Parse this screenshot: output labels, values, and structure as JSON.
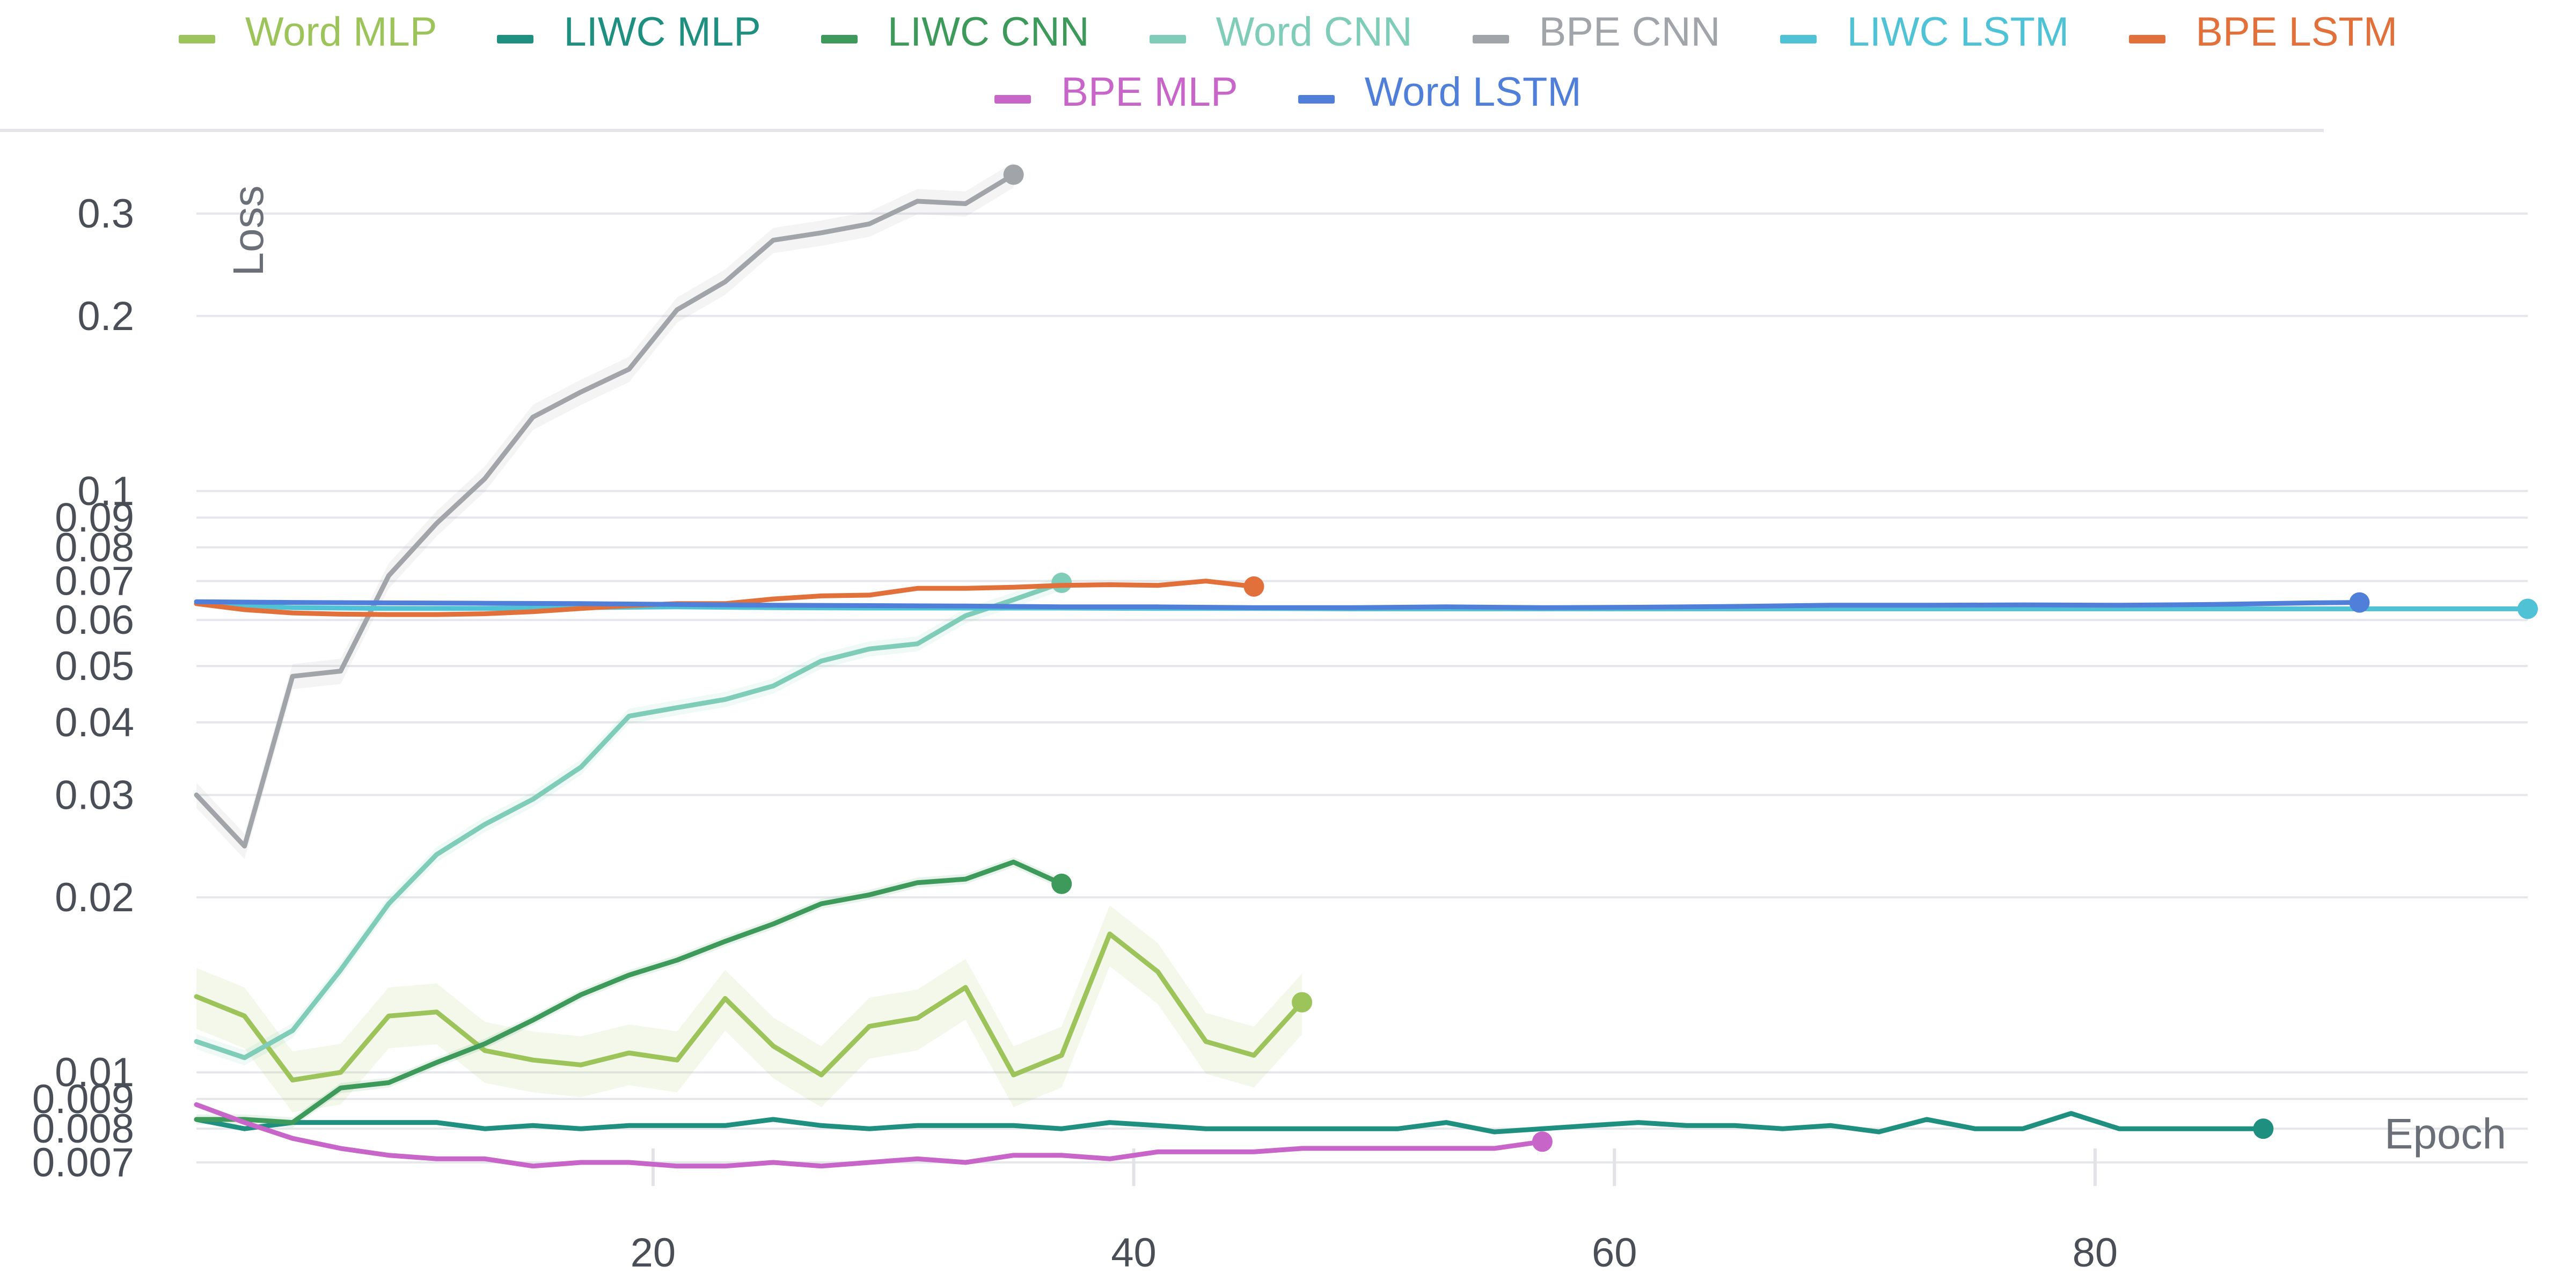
{
  "chart_data": {
    "type": "line",
    "xlabel": "Epoch",
    "ylabel": "Loss",
    "xlim": [
      1,
      98
    ],
    "ylim": [
      0.0064,
      0.36
    ],
    "yscale": "log",
    "grid": true,
    "legend_placement": "top",
    "x_ticks": [
      20,
      40,
      60,
      80
    ],
    "x_tick_labels": [
      "20",
      "40",
      "60",
      "80"
    ],
    "y_ticks": [
      0.007,
      0.008,
      0.009,
      0.01,
      0.02,
      0.03,
      0.04,
      0.05,
      0.06,
      0.07,
      0.08,
      0.09,
      0.1,
      0.2,
      0.3
    ],
    "y_tick_labels": [
      "0.007",
      "0.008",
      "0.009",
      "0.01",
      "0.02",
      "0.03",
      "0.04",
      "0.05",
      "0.06",
      "0.07",
      "0.08",
      "0.09",
      "0.1",
      "0.2",
      "0.3"
    ],
    "series": [
      {
        "name": "Word MLP",
        "color": "#9cc45a",
        "x": [
          1,
          3,
          5,
          7,
          9,
          11,
          13,
          15,
          17,
          19,
          21,
          23,
          25,
          27,
          29,
          31,
          33,
          35,
          37,
          39,
          41,
          43,
          45,
          47
        ],
        "y": [
          0.0135,
          0.0125,
          0.0097,
          0.01,
          0.0125,
          0.0127,
          0.0109,
          0.0105,
          0.0103,
          0.0108,
          0.0105,
          0.0134,
          0.0111,
          0.0099,
          0.012,
          0.0124,
          0.014,
          0.0099,
          0.0107,
          0.0173,
          0.0149,
          0.0113,
          0.0107,
          0.0132
        ]
      },
      {
        "name": "LIWC MLP",
        "color": "#1f8f80",
        "x": [
          1,
          3,
          5,
          7,
          9,
          11,
          13,
          15,
          17,
          19,
          21,
          23,
          25,
          27,
          29,
          31,
          33,
          35,
          37,
          39,
          41,
          43,
          45,
          47,
          49,
          51,
          53,
          55,
          57,
          59,
          61,
          63,
          65,
          67,
          69,
          71,
          73,
          75,
          77,
          79,
          81,
          83,
          85,
          87
        ],
        "y": [
          0.0083,
          0.008,
          0.0082,
          0.0082,
          0.0082,
          0.0082,
          0.008,
          0.0081,
          0.008,
          0.0081,
          0.0081,
          0.0081,
          0.0083,
          0.0081,
          0.008,
          0.0081,
          0.0081,
          0.0081,
          0.008,
          0.0082,
          0.0081,
          0.008,
          0.008,
          0.008,
          0.008,
          0.008,
          0.0082,
          0.0079,
          0.008,
          0.0081,
          0.0082,
          0.0081,
          0.0081,
          0.008,
          0.0081,
          0.0079,
          0.0083,
          0.008,
          0.008,
          0.0085,
          0.008,
          0.008,
          0.008,
          0.008
        ]
      },
      {
        "name": "LIWC CNN",
        "color": "#3e9a5a",
        "x": [
          1,
          3,
          5,
          7,
          9,
          11,
          13,
          15,
          17,
          19,
          21,
          23,
          25,
          27,
          29,
          31,
          33,
          35,
          37
        ],
        "y": [
          0.0083,
          0.0083,
          0.0082,
          0.0094,
          0.0096,
          0.0104,
          0.0112,
          0.0123,
          0.0136,
          0.0147,
          0.0156,
          0.0168,
          0.018,
          0.0195,
          0.0202,
          0.0212,
          0.0215,
          0.023,
          0.0211
        ]
      },
      {
        "name": "Word CNN",
        "color": "#7fcdb8",
        "x": [
          1,
          3,
          5,
          7,
          9,
          11,
          13,
          15,
          17,
          19,
          21,
          23,
          25,
          27,
          29,
          31,
          33,
          35,
          37
        ],
        "y": [
          0.0113,
          0.0106,
          0.0118,
          0.015,
          0.0195,
          0.0237,
          0.0267,
          0.0295,
          0.0335,
          0.041,
          0.0424,
          0.0438,
          0.0462,
          0.051,
          0.0535,
          0.0546,
          0.061,
          0.065,
          0.0695
        ]
      },
      {
        "name": "BPE CNN",
        "color": "#a1a5aa",
        "x": [
          1,
          3,
          5,
          7,
          9,
          11,
          13,
          15,
          17,
          19,
          21,
          23,
          25,
          27,
          29,
          31,
          33,
          35
        ],
        "y": [
          0.03,
          0.0245,
          0.048,
          0.049,
          0.0715,
          0.088,
          0.105,
          0.134,
          0.148,
          0.162,
          0.205,
          0.229,
          0.27,
          0.278,
          0.288,
          0.315,
          0.312,
          0.35
        ]
      },
      {
        "name": "LIWC LSTM",
        "color": "#4fc3d5",
        "x": [
          1,
          5,
          9,
          13,
          17,
          21,
          25,
          29,
          33,
          37,
          41,
          45,
          49,
          53,
          57,
          61,
          65,
          69,
          73,
          77,
          81,
          85,
          89,
          93,
          98
        ],
        "y": [
          0.064,
          0.063,
          0.0628,
          0.0628,
          0.063,
          0.0632,
          0.063,
          0.0629,
          0.0629,
          0.0629,
          0.0628,
          0.0628,
          0.0627,
          0.0627,
          0.0627,
          0.0627,
          0.0627,
          0.0627,
          0.0627,
          0.0627,
          0.0627,
          0.0627,
          0.0627,
          0.0627,
          0.0627
        ]
      },
      {
        "name": "BPE LSTM",
        "color": "#e2703a",
        "x": [
          1,
          3,
          5,
          7,
          9,
          11,
          13,
          15,
          17,
          19,
          21,
          23,
          25,
          27,
          29,
          31,
          33,
          35,
          37,
          39,
          41,
          43,
          45
        ],
        "y": [
          0.064,
          0.0625,
          0.0617,
          0.0614,
          0.0613,
          0.0613,
          0.0615,
          0.062,
          0.0628,
          0.0635,
          0.064,
          0.064,
          0.0652,
          0.066,
          0.0662,
          0.068,
          0.068,
          0.0683,
          0.0688,
          0.069,
          0.0688,
          0.07,
          0.0685
        ]
      },
      {
        "name": "BPE MLP",
        "color": "#c865c8",
        "x": [
          1,
          3,
          5,
          7,
          9,
          11,
          13,
          15,
          17,
          19,
          21,
          23,
          25,
          27,
          29,
          31,
          33,
          35,
          37,
          39,
          41,
          43,
          45,
          47,
          49,
          51,
          53,
          55,
          57
        ],
        "y": [
          0.0088,
          0.0082,
          0.0077,
          0.0074,
          0.0072,
          0.0071,
          0.0071,
          0.0069,
          0.007,
          0.007,
          0.0069,
          0.0069,
          0.007,
          0.0069,
          0.007,
          0.0071,
          0.007,
          0.0072,
          0.0072,
          0.0071,
          0.0073,
          0.0073,
          0.0073,
          0.0074,
          0.0074,
          0.0074,
          0.0074,
          0.0074,
          0.0076
        ]
      },
      {
        "name": "Word LSTM",
        "color": "#4f7fd9",
        "x": [
          1,
          5,
          9,
          13,
          17,
          21,
          25,
          29,
          33,
          37,
          41,
          45,
          49,
          53,
          57,
          61,
          65,
          69,
          73,
          77,
          81,
          85,
          89,
          91
        ],
        "y": [
          0.0645,
          0.0643,
          0.0642,
          0.0641,
          0.064,
          0.0638,
          0.0636,
          0.0635,
          0.0634,
          0.0632,
          0.0632,
          0.063,
          0.063,
          0.0632,
          0.063,
          0.0631,
          0.0633,
          0.0636,
          0.0636,
          0.0637,
          0.0636,
          0.0638,
          0.0642,
          0.0643
        ]
      }
    ]
  },
  "legend": {
    "row1": [
      "Word MLP",
      "LIWC MLP",
      "LIWC CNN",
      "Word CNN",
      "BPE CNN",
      "LIWC LSTM",
      "BPE LSTM"
    ],
    "row2": [
      "BPE MLP",
      "Word LSTM"
    ]
  }
}
